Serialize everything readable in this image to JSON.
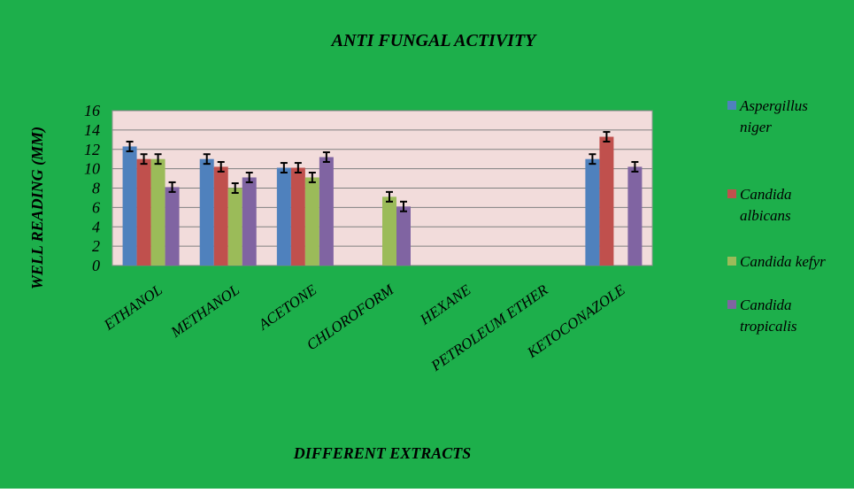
{
  "chart_data": {
    "type": "bar",
    "title": "ANTI FUNGAL ACTIVITY",
    "xlabel": "DIFFERENT EXTRACTS",
    "ylabel": "WELL READING (MM)",
    "ylim": [
      0,
      16
    ],
    "yticks": [
      0,
      2,
      4,
      6,
      8,
      10,
      12,
      14,
      16
    ],
    "grid": true,
    "legend_position": "right",
    "error_bar": 0.5,
    "categories": [
      "ETHANOL",
      "METHANOL",
      "ACETONE",
      "CHLOROFORM",
      "HEXANE",
      "PETROLEUM ETHER",
      "KETOCONAZOLE"
    ],
    "series": [
      {
        "name": "Aspergillus niger",
        "legend_lines": [
          "Aspergillus",
          "niger"
        ],
        "color": "#4F81BD",
        "values": [
          12.3,
          11.0,
          10.1,
          null,
          null,
          null,
          11.0
        ]
      },
      {
        "name": "Candida albicans",
        "legend_lines": [
          "Candida",
          "albicans"
        ],
        "color": "#C0504D",
        "values": [
          11.0,
          10.2,
          10.1,
          null,
          null,
          null,
          13.3
        ]
      },
      {
        "name": "Candida kefyr",
        "legend_lines": [
          "Candida kefyr"
        ],
        "color": "#9BBB59",
        "values": [
          11.0,
          8.0,
          9.1,
          7.1,
          null,
          null,
          null
        ]
      },
      {
        "name": "Candida tropicalis",
        "legend_lines": [
          "Candida",
          "tropicalis"
        ],
        "color": "#8064A2",
        "values": [
          8.1,
          9.1,
          11.2,
          6.1,
          null,
          null,
          10.2
        ]
      }
    ],
    "colors": {
      "background": "#1DAF4B",
      "plot_area": "#F2DCDB",
      "grid": "#808080"
    }
  }
}
